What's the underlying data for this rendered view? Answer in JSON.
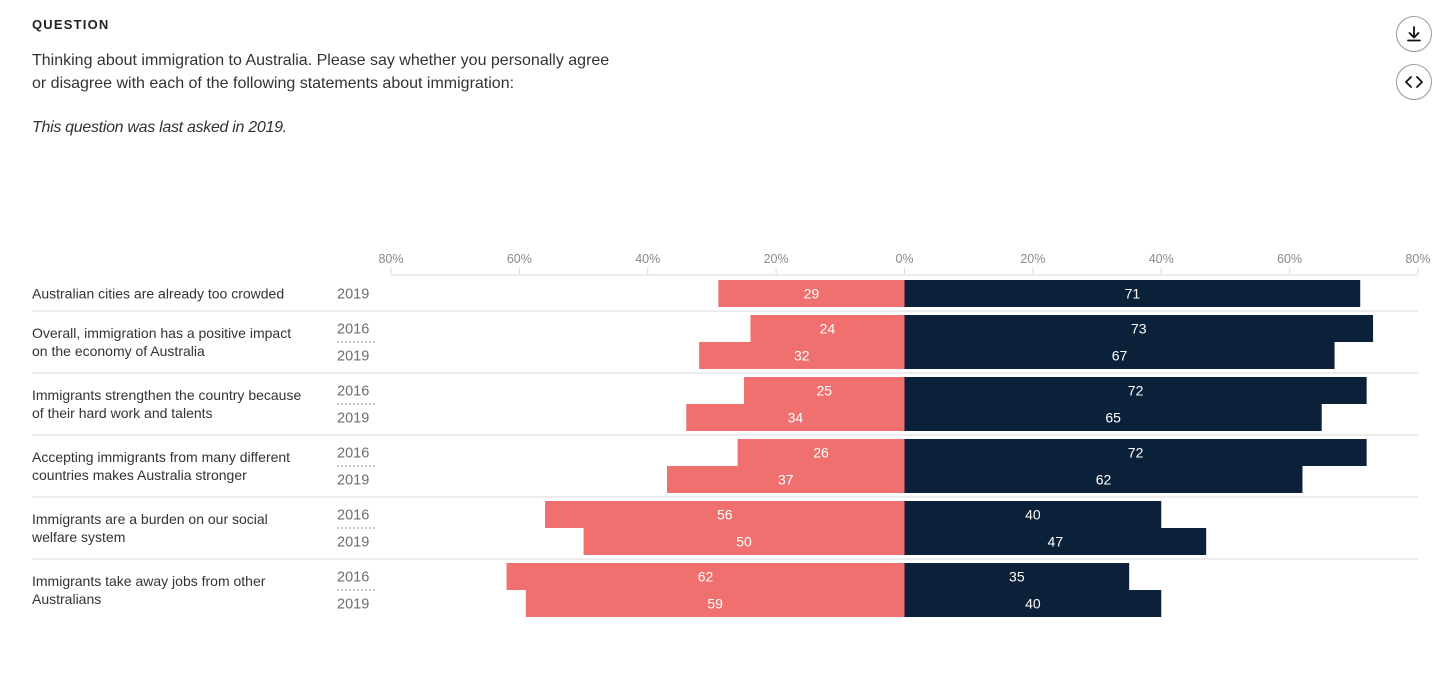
{
  "header": {
    "eyebrow": "QUESTION",
    "question_line1": "Thinking about immigration to Australia. Please say whether you personally agree",
    "question_line2": "or disagree with each of the following statements about immigration:",
    "note": "This question was last asked in 2019."
  },
  "actions": {
    "download_icon": "download-icon",
    "embed_icon": "code-icon"
  },
  "colors": {
    "left": "#f07070",
    "right": "#0b2139",
    "grid": "#d9d9d9",
    "year_divider": "#8a8a8a"
  },
  "chart_data": {
    "type": "bar",
    "orientation": "horizontal-diverging",
    "axis_ticks": [
      "80%",
      "60%",
      "40%",
      "20%",
      "0%",
      "20%",
      "40%",
      "60%",
      "80%"
    ],
    "axis_range": [
      -80,
      80
    ],
    "grid": false,
    "rows": [
      {
        "label": [
          "Australian cities are already too crowded"
        ],
        "bars": [
          {
            "year": "2019",
            "left": 29,
            "right": 71
          }
        ]
      },
      {
        "label": [
          "Overall, immigration has a positive impact",
          "on the economy of Australia"
        ],
        "bars": [
          {
            "year": "2016",
            "left": 24,
            "right": 73
          },
          {
            "year": "2019",
            "left": 32,
            "right": 67
          }
        ]
      },
      {
        "label": [
          "Immigrants strengthen the country because",
          "of their hard work and talents"
        ],
        "bars": [
          {
            "year": "2016",
            "left": 25,
            "right": 72
          },
          {
            "year": "2019",
            "left": 34,
            "right": 65
          }
        ]
      },
      {
        "label": [
          "Accepting immigrants from many different",
          "countries makes Australia stronger"
        ],
        "bars": [
          {
            "year": "2016",
            "left": 26,
            "right": 72
          },
          {
            "year": "2019",
            "left": 37,
            "right": 62
          }
        ]
      },
      {
        "label": [
          "Immigrants are a burden on our social",
          "welfare system"
        ],
        "bars": [
          {
            "year": "2016",
            "left": 56,
            "right": 40
          },
          {
            "year": "2019",
            "left": 50,
            "right": 47
          }
        ]
      },
      {
        "label": [
          "Immigrants take away jobs from other",
          "Australians"
        ],
        "bars": [
          {
            "year": "2016",
            "left": 62,
            "right": 35
          },
          {
            "year": "2019",
            "left": 59,
            "right": 40
          }
        ]
      }
    ]
  }
}
